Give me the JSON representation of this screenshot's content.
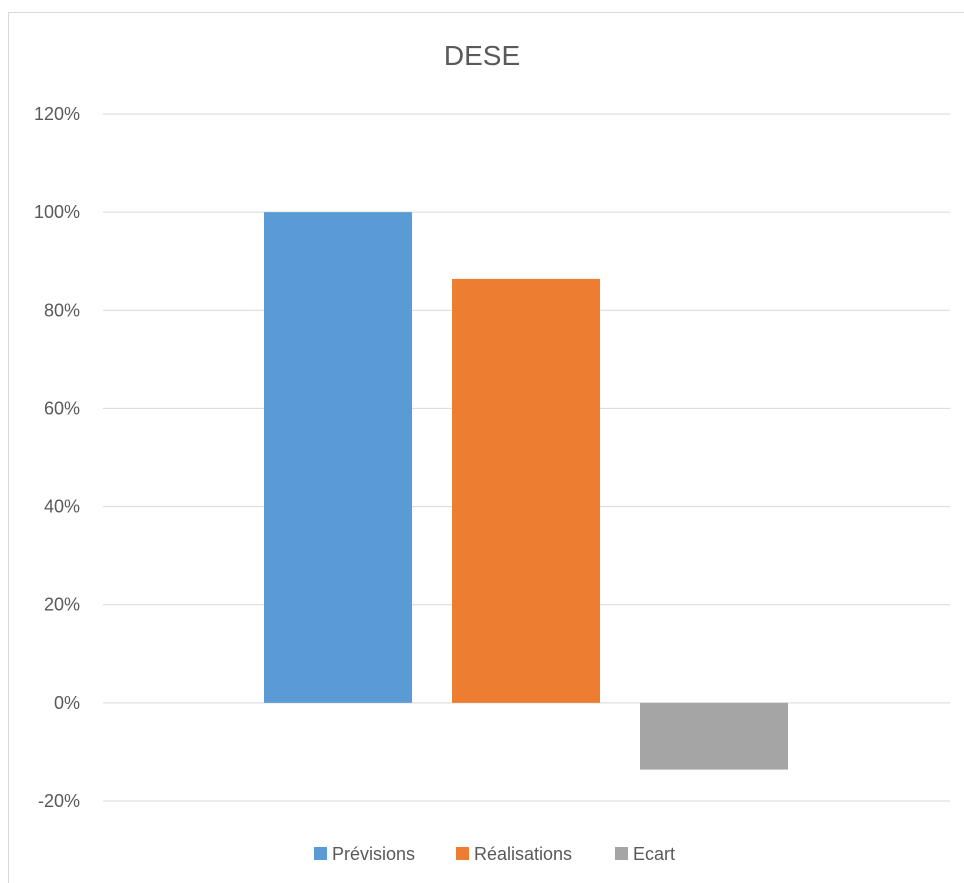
{
  "chart_data": {
    "type": "bar",
    "title": "DESE",
    "xlabel": "",
    "ylabel": "",
    "ylim": [
      -0.2,
      1.2
    ],
    "y_ticks": [
      "120%",
      "100%",
      "80%",
      "60%",
      "40%",
      "20%",
      "0%",
      "-20%"
    ],
    "y_tick_values": [
      1.2,
      1.0,
      0.8,
      0.6,
      0.4,
      0.2,
      0.0,
      -0.2
    ],
    "grid": true,
    "legend_position": "bottom",
    "series": [
      {
        "name": "Prévisions",
        "value": 1.0,
        "color": "#5b9bd5"
      },
      {
        "name": "Réalisations",
        "value": 0.864,
        "color": "#ed7d31"
      },
      {
        "name": "Ecart",
        "value": -0.136,
        "color": "#a5a5a5"
      }
    ]
  }
}
